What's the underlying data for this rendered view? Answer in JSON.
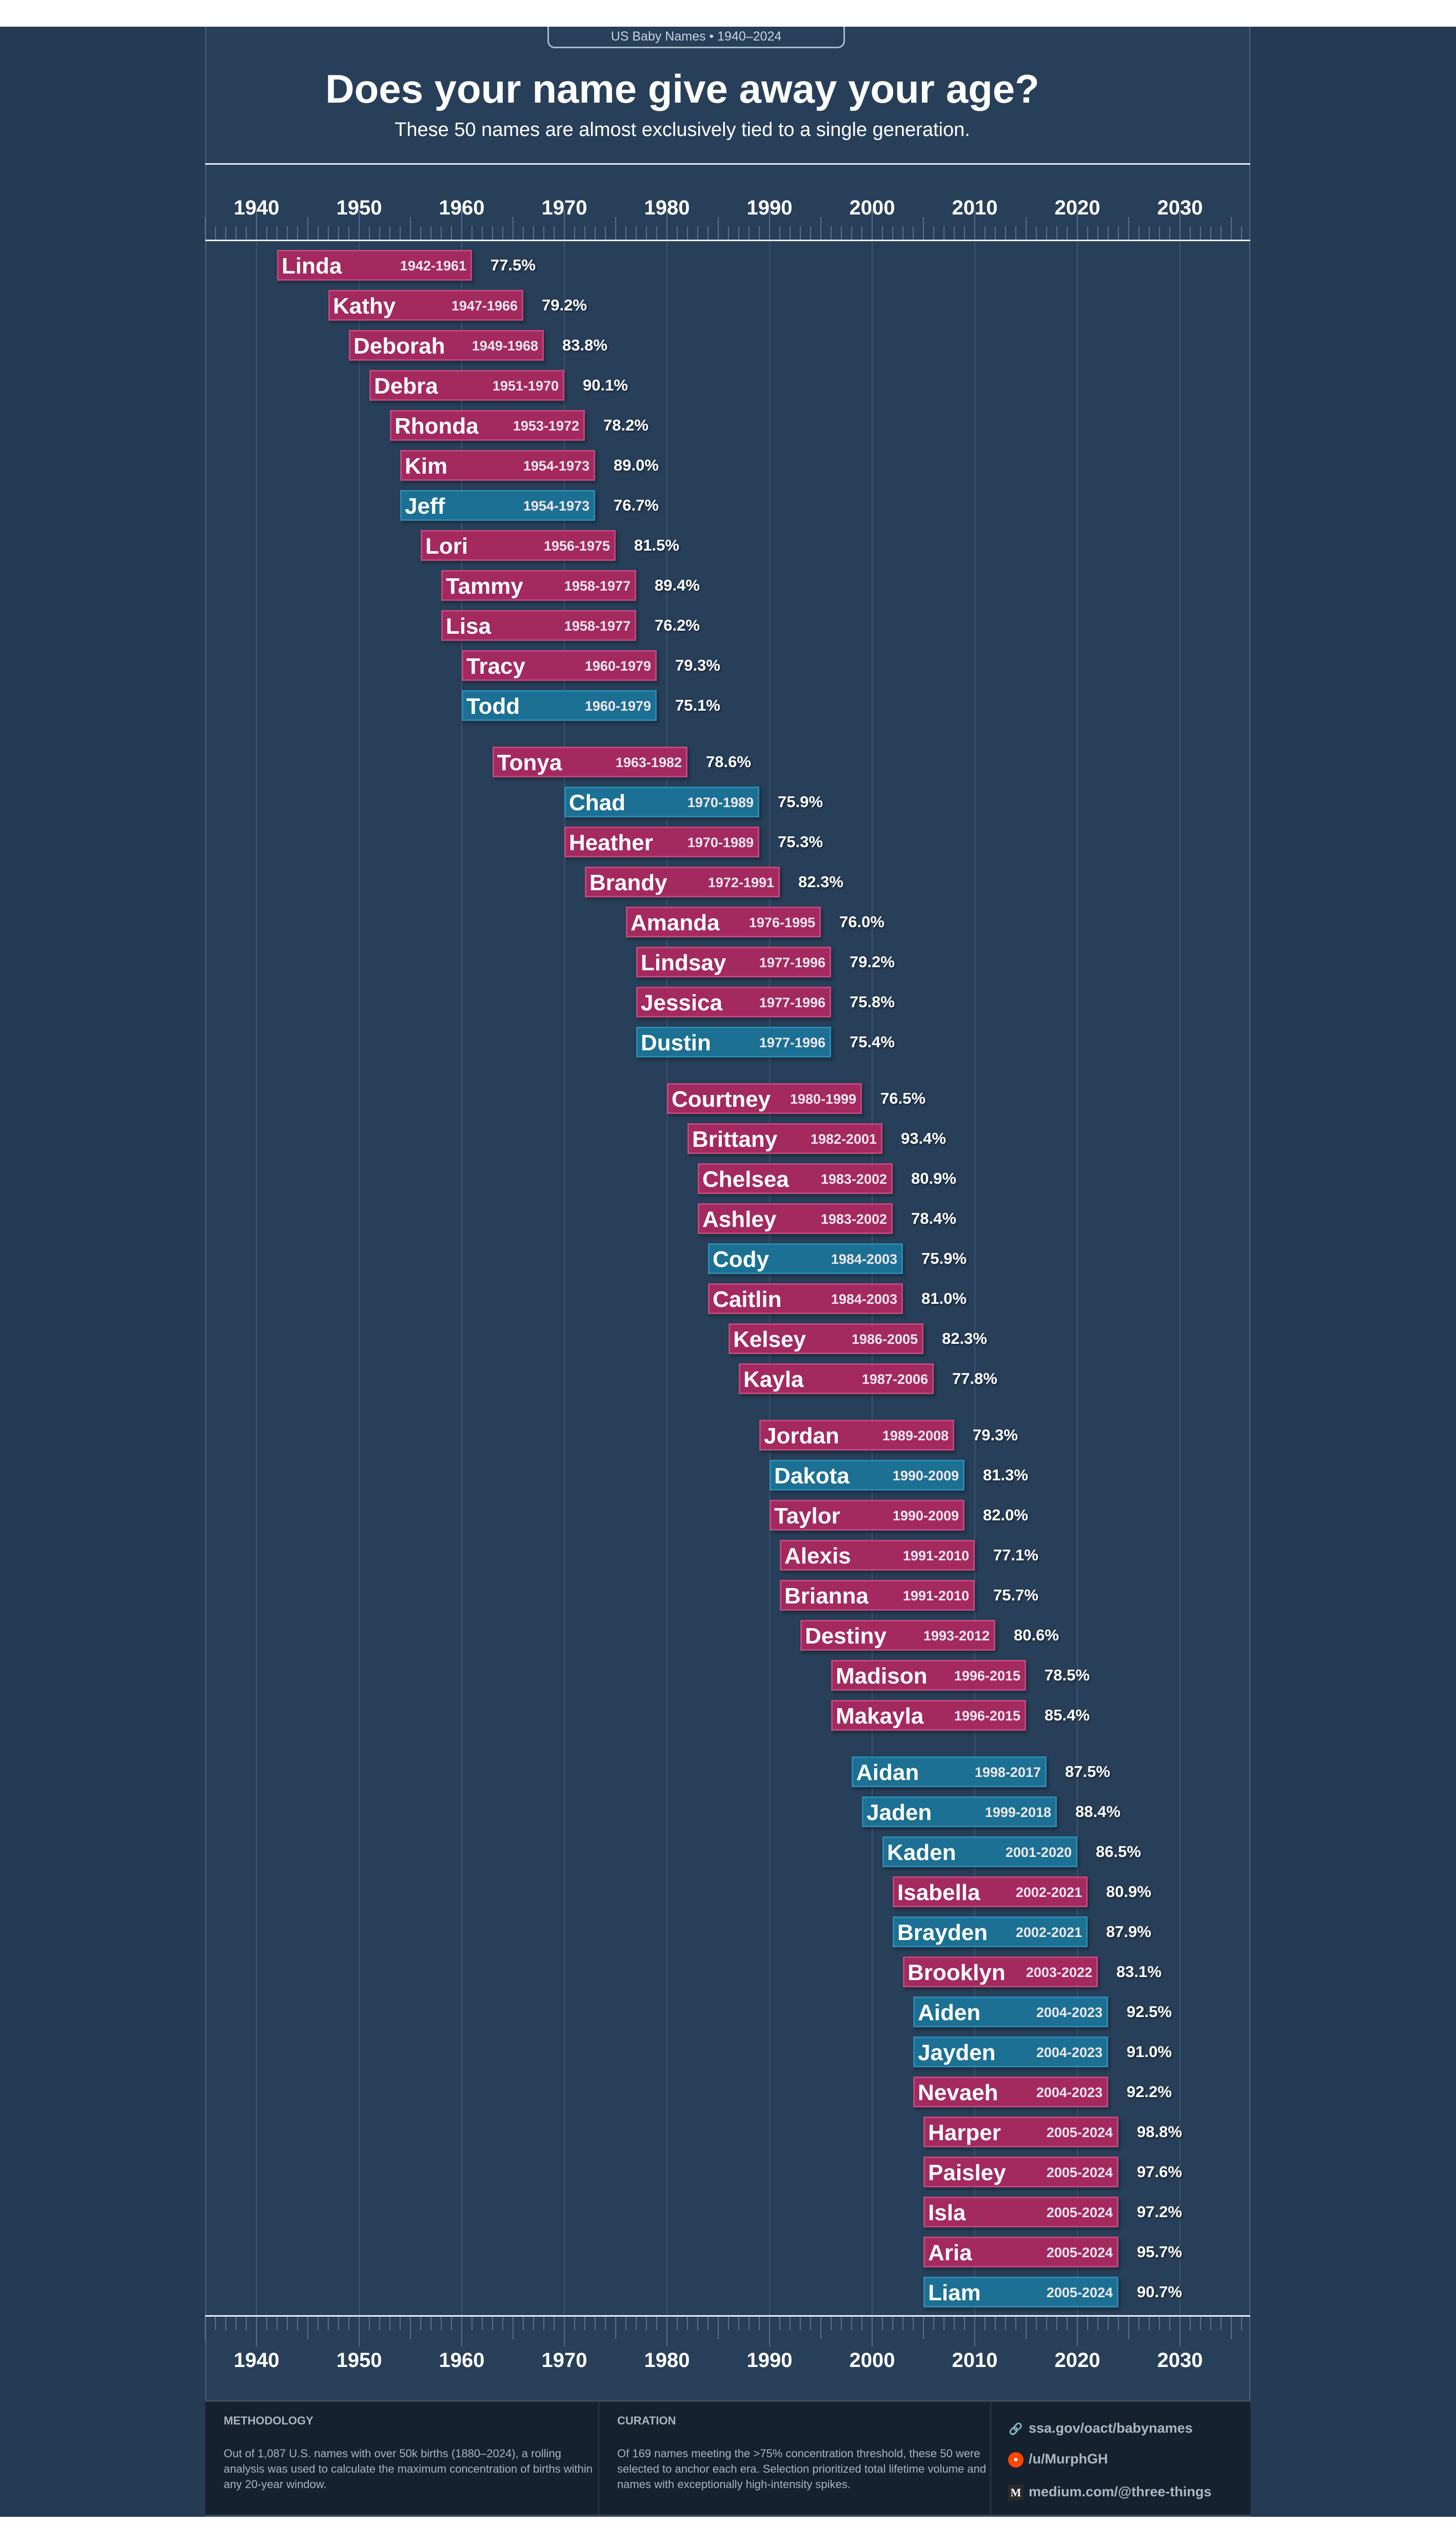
{
  "header": {
    "badge": "US Baby Names • 1940–2024",
    "title": "Does your name give away your age?",
    "subtitle": "These 50 names are almost exclusively tied to a single generation."
  },
  "colors": {
    "female": "#a3295f",
    "male": "#1b7094",
    "background": "#283f59"
  },
  "chart_data": {
    "type": "bar",
    "orientation": "horizontal-range",
    "xlim": [
      1935,
      2037
    ],
    "xticks": [
      1940,
      1950,
      1960,
      1970,
      1980,
      1990,
      2000,
      2010,
      2020,
      2030
    ],
    "grid": true,
    "rows": [
      {
        "name": "Linda",
        "start": 1942,
        "end": 1961,
        "pct": "77.5%",
        "sex": "f",
        "group": 0
      },
      {
        "name": "Kathy",
        "start": 1947,
        "end": 1966,
        "pct": "79.2%",
        "sex": "f",
        "group": 0
      },
      {
        "name": "Deborah",
        "start": 1949,
        "end": 1968,
        "pct": "83.8%",
        "sex": "f",
        "group": 0
      },
      {
        "name": "Debra",
        "start": 1951,
        "end": 1970,
        "pct": "90.1%",
        "sex": "f",
        "group": 0
      },
      {
        "name": "Rhonda",
        "start": 1953,
        "end": 1972,
        "pct": "78.2%",
        "sex": "f",
        "group": 0
      },
      {
        "name": "Kim",
        "start": 1954,
        "end": 1973,
        "pct": "89.0%",
        "sex": "f",
        "group": 0
      },
      {
        "name": "Jeff",
        "start": 1954,
        "end": 1973,
        "pct": "76.7%",
        "sex": "m",
        "group": 0
      },
      {
        "name": "Lori",
        "start": 1956,
        "end": 1975,
        "pct": "81.5%",
        "sex": "f",
        "group": 0
      },
      {
        "name": "Tammy",
        "start": 1958,
        "end": 1977,
        "pct": "89.4%",
        "sex": "f",
        "group": 0
      },
      {
        "name": "Lisa",
        "start": 1958,
        "end": 1977,
        "pct": "76.2%",
        "sex": "f",
        "group": 0
      },
      {
        "name": "Tracy",
        "start": 1960,
        "end": 1979,
        "pct": "79.3%",
        "sex": "f",
        "group": 0
      },
      {
        "name": "Todd",
        "start": 1960,
        "end": 1979,
        "pct": "75.1%",
        "sex": "m",
        "group": 0
      },
      {
        "name": "Tonya",
        "start": 1963,
        "end": 1982,
        "pct": "78.6%",
        "sex": "f",
        "group": 1
      },
      {
        "name": "Chad",
        "start": 1970,
        "end": 1989,
        "pct": "75.9%",
        "sex": "m",
        "group": 1
      },
      {
        "name": "Heather",
        "start": 1970,
        "end": 1989,
        "pct": "75.3%",
        "sex": "f",
        "group": 1
      },
      {
        "name": "Brandy",
        "start": 1972,
        "end": 1991,
        "pct": "82.3%",
        "sex": "f",
        "group": 1
      },
      {
        "name": "Amanda",
        "start": 1976,
        "end": 1995,
        "pct": "76.0%",
        "sex": "f",
        "group": 1
      },
      {
        "name": "Lindsay",
        "start": 1977,
        "end": 1996,
        "pct": "79.2%",
        "sex": "f",
        "group": 1
      },
      {
        "name": "Jessica",
        "start": 1977,
        "end": 1996,
        "pct": "75.8%",
        "sex": "f",
        "group": 1
      },
      {
        "name": "Dustin",
        "start": 1977,
        "end": 1996,
        "pct": "75.4%",
        "sex": "m",
        "group": 1
      },
      {
        "name": "Courtney",
        "start": 1980,
        "end": 1999,
        "pct": "76.5%",
        "sex": "f",
        "group": 2
      },
      {
        "name": "Brittany",
        "start": 1982,
        "end": 2001,
        "pct": "93.4%",
        "sex": "f",
        "group": 2
      },
      {
        "name": "Chelsea",
        "start": 1983,
        "end": 2002,
        "pct": "80.9%",
        "sex": "f",
        "group": 2
      },
      {
        "name": "Ashley",
        "start": 1983,
        "end": 2002,
        "pct": "78.4%",
        "sex": "f",
        "group": 2
      },
      {
        "name": "Cody",
        "start": 1984,
        "end": 2003,
        "pct": "75.9%",
        "sex": "m",
        "group": 2
      },
      {
        "name": "Caitlin",
        "start": 1984,
        "end": 2003,
        "pct": "81.0%",
        "sex": "f",
        "group": 2
      },
      {
        "name": "Kelsey",
        "start": 1986,
        "end": 2005,
        "pct": "82.3%",
        "sex": "f",
        "group": 2
      },
      {
        "name": "Kayla",
        "start": 1987,
        "end": 2006,
        "pct": "77.8%",
        "sex": "f",
        "group": 2
      },
      {
        "name": "Jordan",
        "start": 1989,
        "end": 2008,
        "pct": "79.3%",
        "sex": "f",
        "group": 3
      },
      {
        "name": "Dakota",
        "start": 1990,
        "end": 2009,
        "pct": "81.3%",
        "sex": "m",
        "group": 3
      },
      {
        "name": "Taylor",
        "start": 1990,
        "end": 2009,
        "pct": "82.0%",
        "sex": "f",
        "group": 3
      },
      {
        "name": "Alexis",
        "start": 1991,
        "end": 2010,
        "pct": "77.1%",
        "sex": "f",
        "group": 3
      },
      {
        "name": "Brianna",
        "start": 1991,
        "end": 2010,
        "pct": "75.7%",
        "sex": "f",
        "group": 3
      },
      {
        "name": "Destiny",
        "start": 1993,
        "end": 2012,
        "pct": "80.6%",
        "sex": "f",
        "group": 3
      },
      {
        "name": "Madison",
        "start": 1996,
        "end": 2015,
        "pct": "78.5%",
        "sex": "f",
        "group": 3
      },
      {
        "name": "Makayla",
        "start": 1996,
        "end": 2015,
        "pct": "85.4%",
        "sex": "f",
        "group": 3
      },
      {
        "name": "Aidan",
        "start": 1998,
        "end": 2017,
        "pct": "87.5%",
        "sex": "m",
        "group": 4
      },
      {
        "name": "Jaden",
        "start": 1999,
        "end": 2018,
        "pct": "88.4%",
        "sex": "m",
        "group": 4
      },
      {
        "name": "Kaden",
        "start": 2001,
        "end": 2020,
        "pct": "86.5%",
        "sex": "m",
        "group": 4
      },
      {
        "name": "Isabella",
        "start": 2002,
        "end": 2021,
        "pct": "80.9%",
        "sex": "f",
        "group": 4
      },
      {
        "name": "Brayden",
        "start": 2002,
        "end": 2021,
        "pct": "87.9%",
        "sex": "m",
        "group": 4
      },
      {
        "name": "Brooklyn",
        "start": 2003,
        "end": 2022,
        "pct": "83.1%",
        "sex": "f",
        "group": 4
      },
      {
        "name": "Aiden",
        "start": 2004,
        "end": 2023,
        "pct": "92.5%",
        "sex": "m",
        "group": 4
      },
      {
        "name": "Jayden",
        "start": 2004,
        "end": 2023,
        "pct": "91.0%",
        "sex": "m",
        "group": 4
      },
      {
        "name": "Nevaeh",
        "start": 2004,
        "end": 2023,
        "pct": "92.2%",
        "sex": "f",
        "group": 4
      },
      {
        "name": "Harper",
        "start": 2005,
        "end": 2024,
        "pct": "98.8%",
        "sex": "f",
        "group": 4
      },
      {
        "name": "Paisley",
        "start": 2005,
        "end": 2024,
        "pct": "97.6%",
        "sex": "f",
        "group": 4
      },
      {
        "name": "Isla",
        "start": 2005,
        "end": 2024,
        "pct": "97.2%",
        "sex": "f",
        "group": 4
      },
      {
        "name": "Aria",
        "start": 2005,
        "end": 2024,
        "pct": "95.7%",
        "sex": "f",
        "group": 4
      },
      {
        "name": "Liam",
        "start": 2005,
        "end": 2024,
        "pct": "90.7%",
        "sex": "m",
        "group": 4
      }
    ]
  },
  "footer": {
    "methodology": {
      "heading": "METHODOLOGY",
      "text": "Out of 1,087 U.S. names with over 50k births (1880–2024), a rolling analysis was used to calculate the maximum concentration of births within any 20-year window."
    },
    "curation": {
      "heading": "CURATION",
      "text": "Of 169 names meeting the >75% concentration threshold, these 50 were selected to anchor each era. Selection prioritized total lifetime volume and names with exceptionally high-intensity spikes."
    },
    "links": [
      {
        "icon": "link-icon",
        "label": "ssa.gov/oact/babynames"
      },
      {
        "icon": "reddit-icon",
        "label": "/u/MurphGH"
      },
      {
        "icon": "medium-icon",
        "label": "medium.com/@three-things"
      }
    ]
  }
}
